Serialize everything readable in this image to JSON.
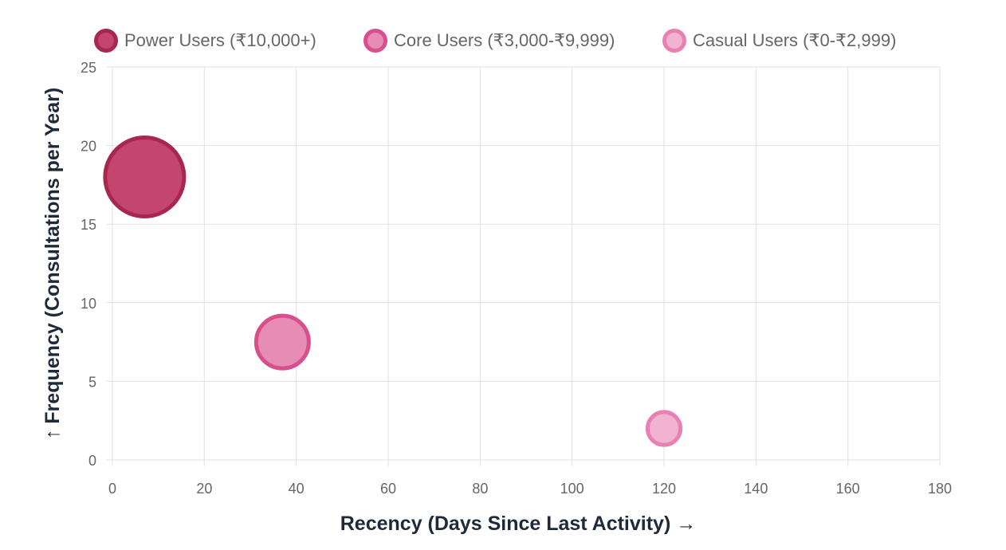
{
  "chart_data": {
    "type": "bubble",
    "xlabel": "Recency (Days Since Last Activity) →",
    "ylabel": "↑ Frequency (Consultations per Year)",
    "xlim": [
      0,
      180
    ],
    "ylim": [
      0,
      25
    ],
    "x_ticks": [
      "0",
      "20",
      "40",
      "60",
      "80",
      "100",
      "120",
      "140",
      "160",
      "180"
    ],
    "y_ticks": [
      "0",
      "5",
      "10",
      "15",
      "20",
      "25"
    ],
    "grid": true,
    "legend_position": "top-center",
    "series": [
      {
        "name": "Power Users (₹10,000+)",
        "x": 7,
        "y": 18,
        "size": 3.0,
        "border_color": "#a8274e",
        "fill_color": "#c2466f"
      },
      {
        "name": "Core Users (₹3,000-₹9,999)",
        "x": 37,
        "y": 7.5,
        "size": 2.0,
        "border_color": "#d94f8e",
        "fill_color": "#e78db5"
      },
      {
        "name": "Casual Users (₹0-₹2,999)",
        "x": 120,
        "y": 2,
        "size": 1.25,
        "border_color": "#e980b4",
        "fill_color": "#f1b3d0"
      }
    ]
  }
}
